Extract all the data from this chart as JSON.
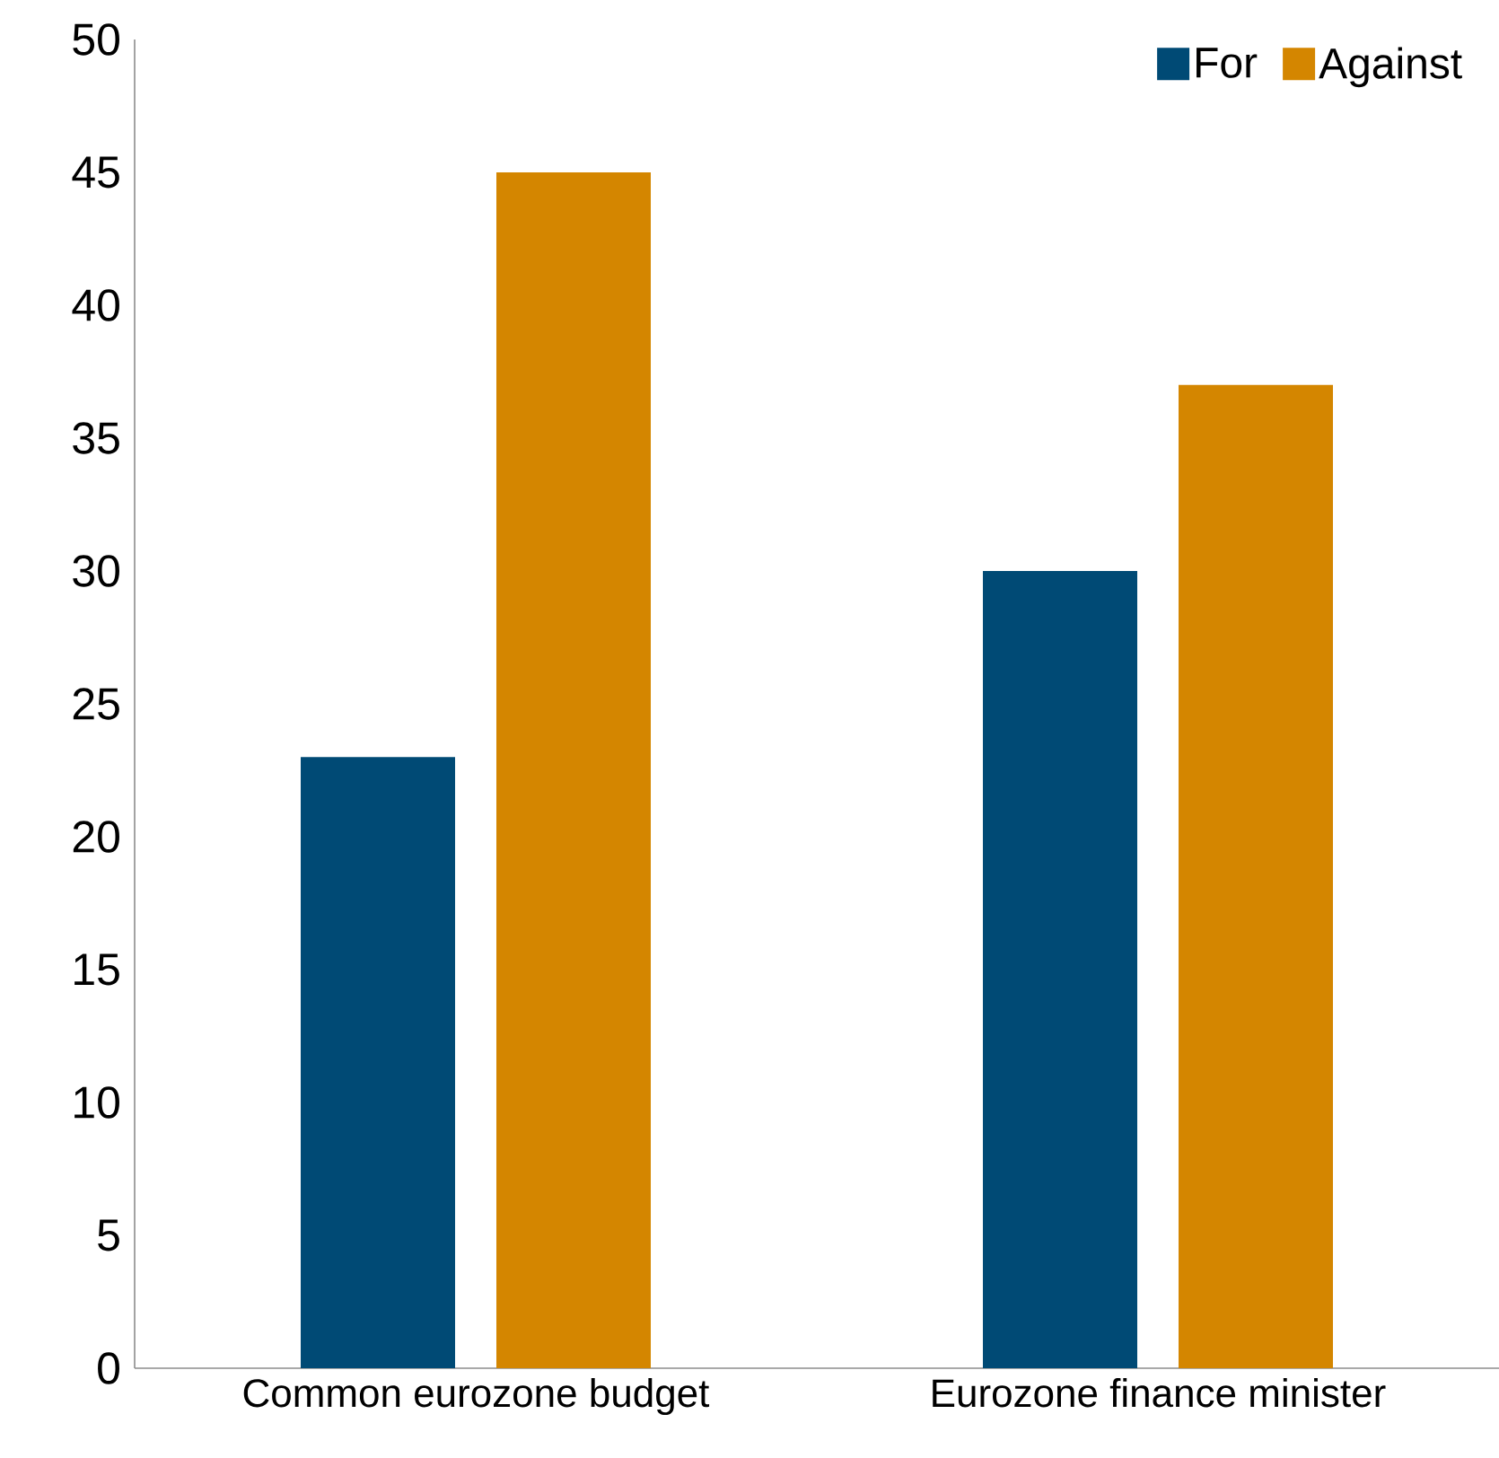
{
  "chart_data": {
    "type": "bar",
    "categories": [
      "Common eurozone budget",
      "Eurozone finance minister"
    ],
    "series": [
      {
        "name": "For",
        "color": "#004a75",
        "values": [
          23,
          30
        ]
      },
      {
        "name": "Against",
        "color": "#d48600",
        "values": [
          45,
          37
        ]
      }
    ],
    "ylim": [
      0,
      50
    ],
    "yticks": [
      0,
      5,
      10,
      15,
      20,
      25,
      30,
      35,
      40,
      45,
      50
    ],
    "legend": "top right",
    "grid": false
  }
}
